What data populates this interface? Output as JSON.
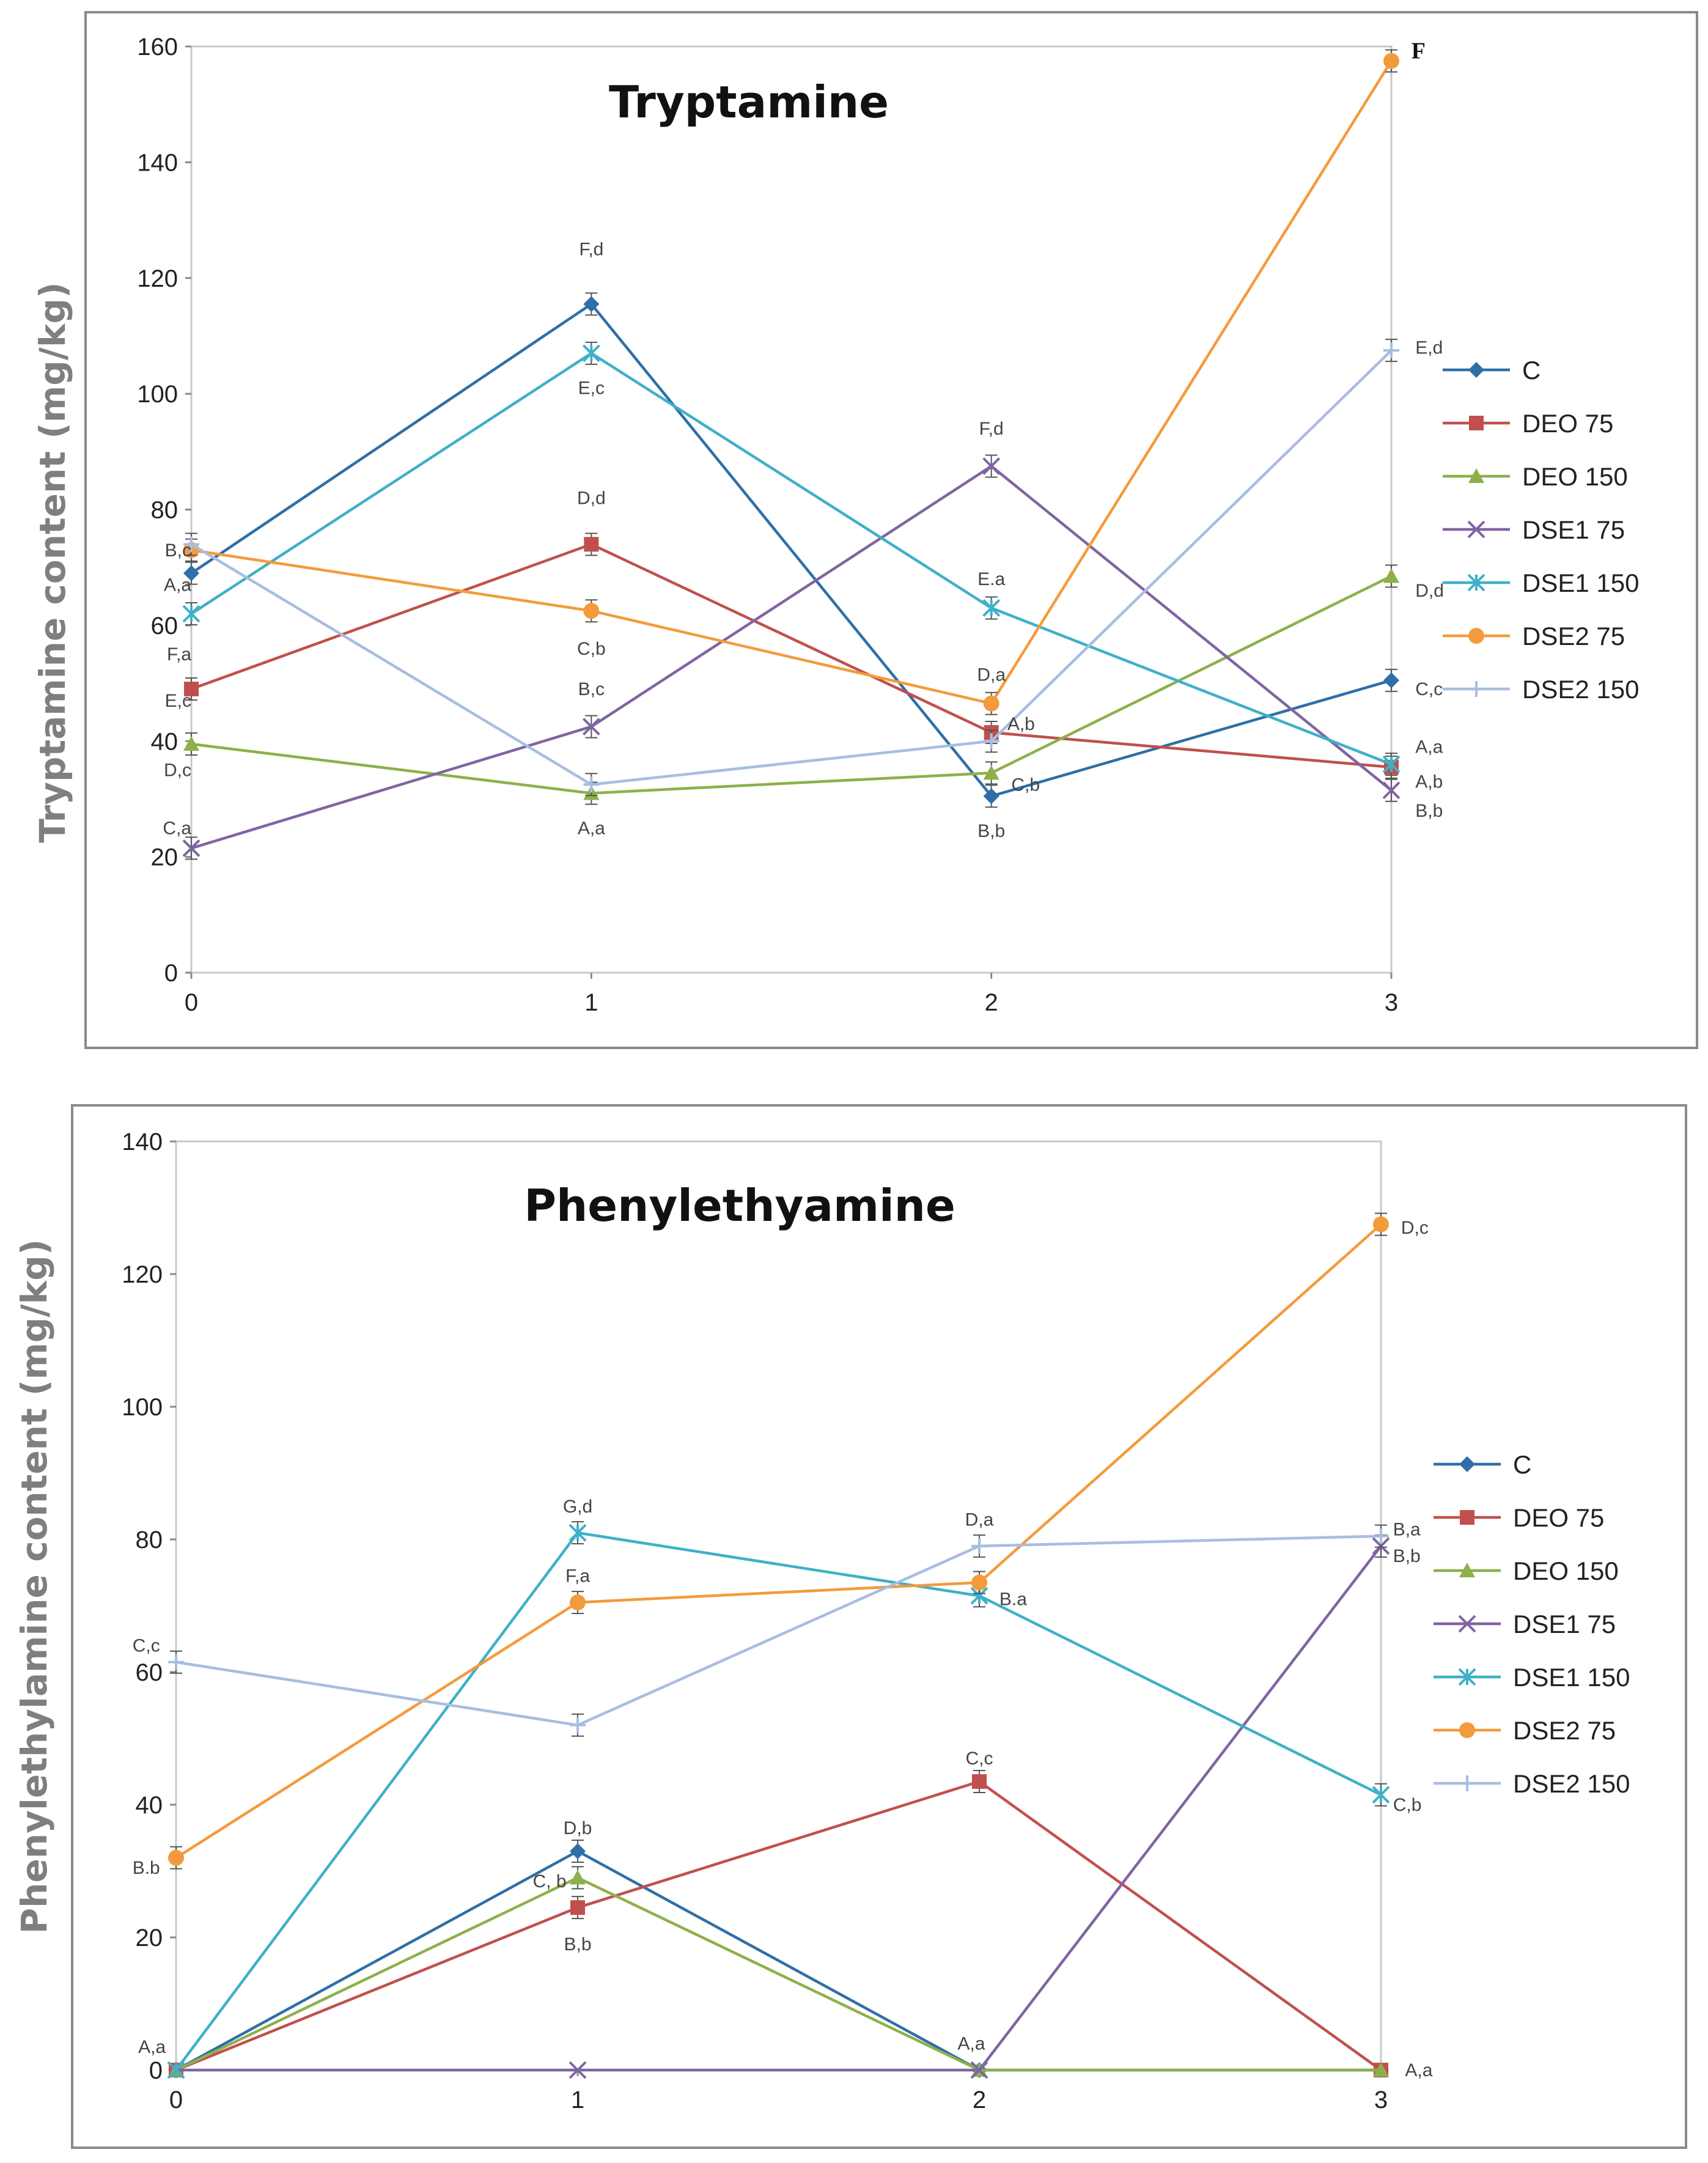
{
  "series_style": [
    {
      "name": "C",
      "color": "#2e6fa7",
      "marker": "diamond"
    },
    {
      "name": "DEO 75",
      "color": "#c0504d",
      "marker": "square"
    },
    {
      "name": "DEO 150",
      "color": "#8db04a",
      "marker": "triangle"
    },
    {
      "name": "DSE1 75",
      "color": "#8064a2",
      "marker": "x"
    },
    {
      "name": "DSE1 150",
      "color": "#3fb0c8",
      "marker": "star"
    },
    {
      "name": "DSE2 75",
      "color": "#f39b3c",
      "marker": "circle"
    },
    {
      "name": "DSE2 150",
      "color": "#a8bde0",
      "marker": "plus"
    }
  ],
  "chart_data": [
    {
      "type": "line",
      "title": "Tryptamine",
      "xlabel": "",
      "ylabel": "Tryptamine content (mg/kg)",
      "x": [
        0,
        1,
        2,
        3
      ],
      "xlim": [
        0,
        3
      ],
      "ylim": [
        0,
        160
      ],
      "yticks": [
        0,
        20,
        40,
        60,
        80,
        100,
        120,
        140,
        160
      ],
      "legend": "right",
      "series": [
        {
          "name": "C",
          "values": [
            69,
            115.5,
            30.5,
            50.5
          ]
        },
        {
          "name": "DEO 75",
          "values": [
            49,
            74,
            41.5,
            35.5
          ]
        },
        {
          "name": "DEO 150",
          "values": [
            39.5,
            31,
            34.5,
            68.5
          ]
        },
        {
          "name": "DSE1 75",
          "values": [
            21.5,
            42.5,
            87.5,
            31.5
          ]
        },
        {
          "name": "DSE1 150",
          "values": [
            62,
            107,
            63,
            36
          ]
        },
        {
          "name": "DSE2 75",
          "values": [
            73,
            62.5,
            46.5,
            157.5
          ]
        },
        {
          "name": "DSE2 150",
          "values": [
            74,
            32.5,
            40,
            107.5
          ]
        }
      ],
      "annotations": [
        {
          "text": "B,c",
          "x": 0,
          "y": 73,
          "anchor": "end"
        },
        {
          "text": "A,a",
          "x": 0,
          "y": 67,
          "anchor": "end"
        },
        {
          "text": "F,a",
          "x": 0,
          "y": 55,
          "anchor": "end"
        },
        {
          "text": "E,c",
          "x": 0,
          "y": 47,
          "anchor": "end"
        },
        {
          "text": "D,c",
          "x": 0,
          "y": 35,
          "anchor": "end"
        },
        {
          "text": "C,a",
          "x": 0,
          "y": 25,
          "anchor": "end"
        },
        {
          "text": "F,d",
          "x": 1,
          "y": 125,
          "anchor": "middle"
        },
        {
          "text": "E,c",
          "x": 1,
          "y": 101,
          "anchor": "middle"
        },
        {
          "text": "D,d",
          "x": 1,
          "y": 82,
          "anchor": "middle"
        },
        {
          "text": "C,b",
          "x": 1,
          "y": 56,
          "anchor": "middle"
        },
        {
          "text": "B,c",
          "x": 1,
          "y": 49,
          "anchor": "middle"
        },
        {
          "text": "A,a",
          "x": 1,
          "y": 25,
          "anchor": "middle"
        },
        {
          "text": "F,d",
          "x": 2,
          "y": 94,
          "anchor": "middle"
        },
        {
          "text": "E.a",
          "x": 2,
          "y": 68,
          "anchor": "middle"
        },
        {
          "text": "D,a",
          "x": 2,
          "y": 51.5,
          "anchor": "middle"
        },
        {
          "text": "A,b",
          "x": 2.04,
          "y": 43,
          "anchor": "start"
        },
        {
          "text": "C,b",
          "x": 2.05,
          "y": 32.5,
          "anchor": "start"
        },
        {
          "text": "B,b",
          "x": 2,
          "y": 24.5,
          "anchor": "middle"
        },
        {
          "text": "F",
          "x": 3.05,
          "y": 159,
          "anchor": "start",
          "bold": true
        },
        {
          "text": "E,d",
          "x": 3.06,
          "y": 108,
          "anchor": "start"
        },
        {
          "text": "D,d",
          "x": 3.06,
          "y": 66,
          "anchor": "start"
        },
        {
          "text": "C,c",
          "x": 3.06,
          "y": 49,
          "anchor": "start"
        },
        {
          "text": "A,a",
          "x": 3.06,
          "y": 39,
          "anchor": "start"
        },
        {
          "text": "A,b",
          "x": 3.06,
          "y": 33,
          "anchor": "start"
        },
        {
          "text": "B,b",
          "x": 3.06,
          "y": 28,
          "anchor": "start"
        }
      ]
    },
    {
      "type": "line",
      "title": "Phenylethyamine",
      "xlabel": "",
      "ylabel": "Phenylethylamine content (mg/kg)",
      "x": [
        0,
        1,
        2,
        3
      ],
      "xlim": [
        0,
        3
      ],
      "ylim": [
        0,
        140
      ],
      "yticks": [
        0,
        20,
        40,
        60,
        80,
        100,
        120,
        140
      ],
      "legend": "right",
      "series": [
        {
          "name": "C",
          "values": [
            0,
            33,
            0,
            0
          ]
        },
        {
          "name": "DEO 75",
          "values": [
            0,
            24.5,
            43.5,
            0
          ]
        },
        {
          "name": "DEO 150",
          "values": [
            0,
            29,
            0,
            0
          ]
        },
        {
          "name": "DSE1 75",
          "values": [
            0,
            0,
            0,
            79
          ]
        },
        {
          "name": "DSE1 150",
          "values": [
            0,
            81,
            71.5,
            41.5
          ]
        },
        {
          "name": "DSE2 75",
          "values": [
            32,
            70.5,
            73.5,
            127.5
          ]
        },
        {
          "name": "DSE2 150",
          "values": [
            61.5,
            52,
            79,
            80.5
          ]
        }
      ],
      "annotations": [
        {
          "text": "C,c",
          "x": -0.04,
          "y": 64,
          "anchor": "end"
        },
        {
          "text": "B.b",
          "x": -0.04,
          "y": 30.5,
          "anchor": "end"
        },
        {
          "text": "A,a",
          "x": -0.06,
          "y": 3.5,
          "anchor": "middle"
        },
        {
          "text": "G,d",
          "x": 1,
          "y": 85,
          "anchor": "middle"
        },
        {
          "text": "F,a",
          "x": 1,
          "y": 74.5,
          "anchor": "middle"
        },
        {
          "text": "D,b",
          "x": 1,
          "y": 36.5,
          "anchor": "middle"
        },
        {
          "text": "C, b",
          "x": 0.93,
          "y": 28.5,
          "anchor": "middle"
        },
        {
          "text": "B,b",
          "x": 1,
          "y": 19,
          "anchor": "middle"
        },
        {
          "text": "D,a",
          "x": 2,
          "y": 83,
          "anchor": "middle"
        },
        {
          "text": "B.a",
          "x": 2.05,
          "y": 71,
          "anchor": "start"
        },
        {
          "text": "C,c",
          "x": 2,
          "y": 47,
          "anchor": "middle"
        },
        {
          "text": "A,a",
          "x": 1.98,
          "y": 4,
          "anchor": "middle"
        },
        {
          "text": "D,c",
          "x": 3.05,
          "y": 127,
          "anchor": "start"
        },
        {
          "text": "B,a",
          "x": 3.03,
          "y": 81.5,
          "anchor": "start"
        },
        {
          "text": "B,b",
          "x": 3.03,
          "y": 77.5,
          "anchor": "start"
        },
        {
          "text": "C,b",
          "x": 3.03,
          "y": 40,
          "anchor": "start"
        },
        {
          "text": "A,a",
          "x": 3.06,
          "y": 0,
          "anchor": "start"
        }
      ]
    }
  ]
}
